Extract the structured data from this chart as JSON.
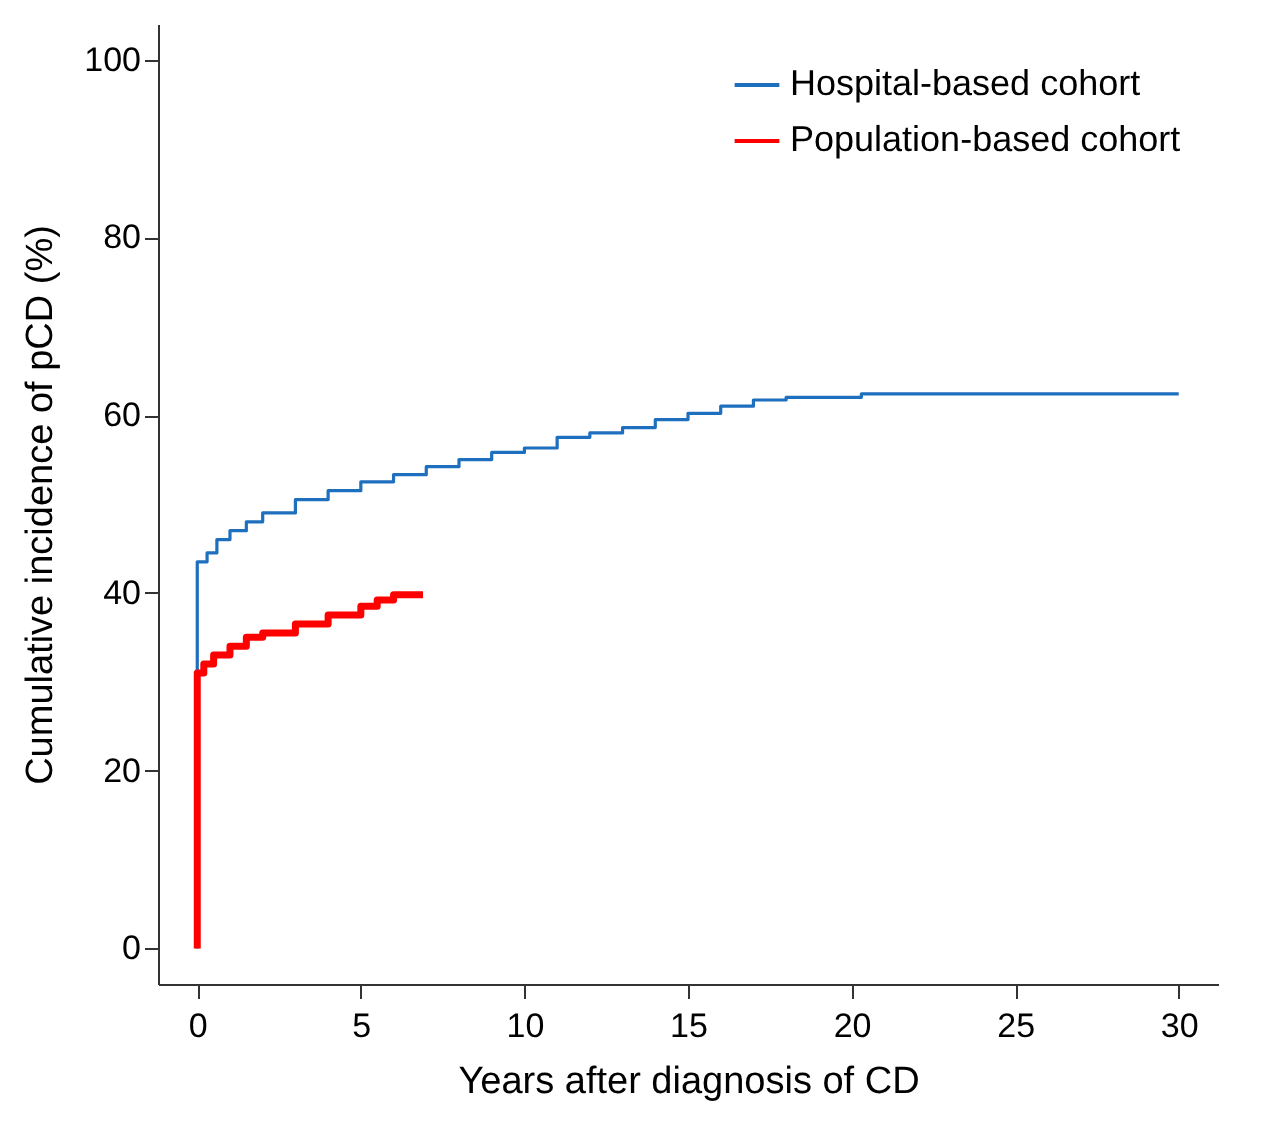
{
  "chart_data": {
    "type": "step",
    "xlabel": "Years after diagnosis of CD",
    "ylabel": "Cumulative incidence of pCD (%)",
    "xlim": [
      -1.2,
      31.2
    ],
    "xticks": [
      0,
      5,
      10,
      15,
      20,
      25,
      30
    ],
    "ylim": [
      -4,
      104
    ],
    "yticks": [
      0,
      20,
      40,
      60,
      80,
      100
    ],
    "grid": false,
    "legend": "top right",
    "line_style": "solid",
    "series": [
      {
        "name": "Hospital-based cohort",
        "color": "#1f6fbf",
        "x": [
          0,
          0,
          0.3,
          0.6,
          1,
          1.5,
          2,
          3,
          4,
          5,
          6,
          7,
          8,
          9,
          10,
          11,
          12,
          13,
          14,
          15,
          16,
          17,
          18,
          20,
          20.3,
          30
        ],
        "values": [
          0,
          43.5,
          44.5,
          46,
          47,
          48,
          49,
          50.5,
          51.5,
          52.5,
          53.3,
          54.2,
          55,
          55.8,
          56.3,
          57.5,
          58,
          58.6,
          59.5,
          60.2,
          61,
          61.7,
          62,
          62,
          62.4,
          62.4
        ]
      },
      {
        "name": "Population-based cohort",
        "color": "#ff0000",
        "x": [
          0,
          0,
          0.2,
          0.5,
          1,
          1.5,
          2,
          3,
          4,
          5,
          5.5,
          6,
          6.9
        ],
        "values": [
          0,
          31,
          32,
          33,
          34,
          35,
          35.5,
          36.5,
          37.5,
          38.5,
          39.2,
          39.8,
          39.8
        ]
      }
    ]
  }
}
